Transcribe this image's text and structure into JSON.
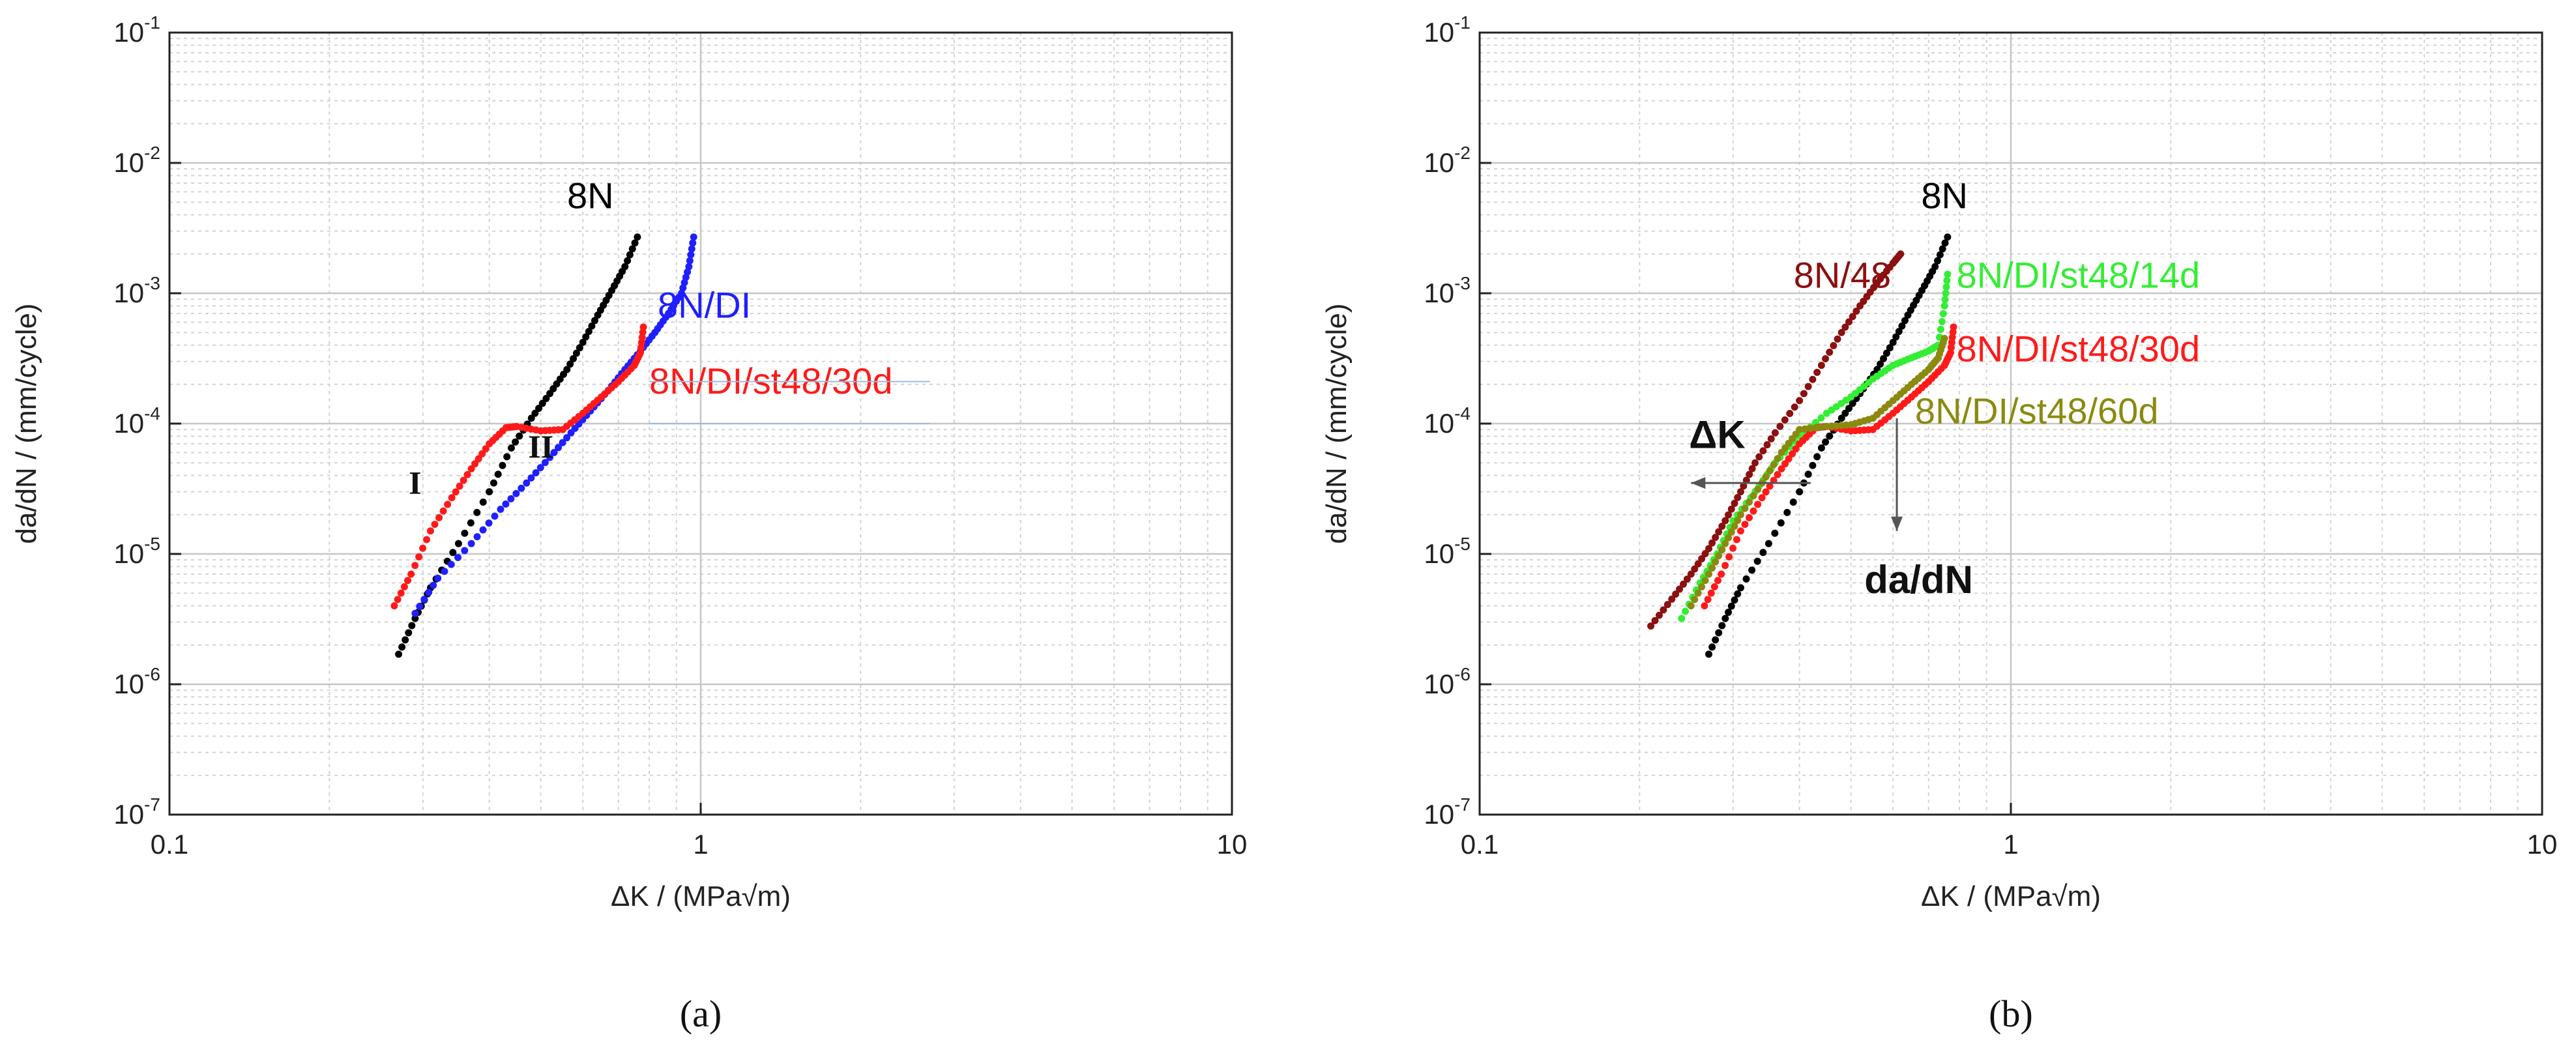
{
  "chart_data": [
    {
      "panel_label": "(a)",
      "type": "scatter",
      "xlabel": "ΔK / (MPa√m)",
      "ylabel": "da/dN / (mm/cycle)",
      "xscale": "log",
      "yscale": "log",
      "xlim": [
        0.1,
        10
      ],
      "ylim": [
        1e-07,
        0.1
      ],
      "x_tick_labels": [
        "0.1",
        "1",
        "10"
      ],
      "y_tick_labels": [
        "10-7",
        "10-6",
        "10-5",
        "10-4",
        "10-3",
        "10-2",
        "10-1"
      ],
      "grid": true,
      "series": [
        {
          "name": "8N",
          "color": "#000000",
          "x": [
            0.27,
            0.29,
            0.31,
            0.35,
            0.4,
            0.44,
            0.48,
            0.52,
            0.56,
            0.6,
            0.64,
            0.68,
            0.72,
            0.76
          ],
          "y": [
            1.7e-06,
            3.2e-06,
            5.5e-06,
            1.2e-05,
            3e-05,
            6.5e-05,
            0.00011,
            0.00017,
            0.00026,
            0.00042,
            0.00068,
            0.00105,
            0.0016,
            0.0027
          ]
        },
        {
          "name": "8N/DI",
          "color": "#1f1fff",
          "x": [
            0.29,
            0.32,
            0.37,
            0.42,
            0.47,
            0.52,
            0.57,
            0.62,
            0.67,
            0.72,
            0.77,
            0.82,
            0.87,
            0.92,
            0.95,
            0.97
          ],
          "y": [
            3.5e-06,
            6.5e-06,
            1.2e-05,
            2.2e-05,
            3.5e-05,
            5.5e-05,
            8.5e-05,
            0.000125,
            0.00018,
            0.00026,
            0.00036,
            0.0005,
            0.0007,
            0.001,
            0.0016,
            0.0027
          ]
        },
        {
          "name": "8N/DI/st48/30d",
          "color": "#ff1a1a",
          "x": [
            0.265,
            0.285,
            0.31,
            0.34,
            0.37,
            0.4,
            0.43,
            0.45,
            0.5,
            0.55,
            0.6,
            0.65,
            0.7,
            0.75,
            0.77,
            0.78
          ],
          "y": [
            4e-06,
            7e-06,
            1.5e-05,
            2.7e-05,
            4.5e-05,
            7e-05,
            9.3e-05,
            9.5e-05,
            8.8e-05,
            9e-05,
            0.00012,
            0.00016,
            0.00021,
            0.00028,
            0.00035,
            0.00055
          ]
        }
      ],
      "annotations": [
        "8N",
        "8N/DI",
        "8N/DI/st48/30d",
        "I",
        "II"
      ]
    },
    {
      "panel_label": "(b)",
      "type": "scatter",
      "xlabel": "ΔK / (MPa√m)",
      "ylabel": "da/dN / (mm/cycle)",
      "xscale": "log",
      "yscale": "log",
      "xlim": [
        0.1,
        10
      ],
      "ylim": [
        1e-07,
        0.1
      ],
      "x_tick_labels": [
        "0.1",
        "1",
        "10"
      ],
      "y_tick_labels": [
        "10-7",
        "10-6",
        "10-5",
        "10-4",
        "10-3",
        "10-2",
        "10-1"
      ],
      "grid": true,
      "series": [
        {
          "name": "8N",
          "color": "#000000",
          "x": [
            0.27,
            0.29,
            0.31,
            0.35,
            0.4,
            0.44,
            0.48,
            0.52,
            0.56,
            0.6,
            0.64,
            0.68,
            0.72,
            0.76
          ],
          "y": [
            1.7e-06,
            3.2e-06,
            5.5e-06,
            1.2e-05,
            3e-05,
            6.5e-05,
            0.00011,
            0.00017,
            0.00026,
            0.00042,
            0.00068,
            0.00105,
            0.0016,
            0.0027
          ]
        },
        {
          "name": "8N/48",
          "color": "#8b1010",
          "x": [
            0.21,
            0.23,
            0.25,
            0.27,
            0.29,
            0.31,
            0.33,
            0.36,
            0.4,
            0.44,
            0.48,
            0.52,
            0.56,
            0.6,
            0.62
          ],
          "y": [
            2.8e-06,
            4.5e-06,
            7e-06,
            1.1e-05,
            1.8e-05,
            3e-05,
            5e-05,
            8.5e-05,
            0.00015,
            0.00028,
            0.0005,
            0.0008,
            0.0012,
            0.0017,
            0.002
          ]
        },
        {
          "name": "8N/DI/st48/14d",
          "color": "#33ee33",
          "x": [
            0.24,
            0.26,
            0.28,
            0.3,
            0.33,
            0.36,
            0.4,
            0.45,
            0.5,
            0.55,
            0.6,
            0.65,
            0.7,
            0.73,
            0.75,
            0.76
          ],
          "y": [
            3.2e-06,
            6e-06,
            1e-05,
            1.8e-05,
            3e-05,
            5e-05,
            8e-05,
            0.00012,
            0.00016,
            0.00022,
            0.00028,
            0.00032,
            0.00036,
            0.0004,
            0.0008,
            0.0014
          ]
        },
        {
          "name": "8N/DI/st48/30d",
          "color": "#ff1a1a",
          "x": [
            0.265,
            0.285,
            0.31,
            0.34,
            0.37,
            0.4,
            0.43,
            0.45,
            0.5,
            0.55,
            0.6,
            0.65,
            0.7,
            0.75,
            0.77,
            0.78
          ],
          "y": [
            4e-06,
            7e-06,
            1.5e-05,
            2.7e-05,
            4.5e-05,
            7e-05,
            9.3e-05,
            9.5e-05,
            8.8e-05,
            9e-05,
            0.00012,
            0.00016,
            0.00021,
            0.00028,
            0.00035,
            0.00055
          ]
        },
        {
          "name": "8N/DI/st48/60d",
          "color": "#8a8a10",
          "x": [
            0.25,
            0.27,
            0.29,
            0.31,
            0.34,
            0.37,
            0.4,
            0.45,
            0.5,
            0.55,
            0.6,
            0.65,
            0.7,
            0.73,
            0.75
          ],
          "y": [
            4e-06,
            7e-06,
            1.2e-05,
            2e-05,
            3.5e-05,
            6e-05,
            9e-05,
            9.5e-05,
            9.8e-05,
            0.00011,
            0.00015,
            0.0002,
            0.00026,
            0.00032,
            0.00045
          ]
        }
      ],
      "annotations": [
        "8N",
        "8N/48",
        "8N/DI/st48/14d",
        "8N/DI/st48/30d",
        "8N/DI/st48/60d",
        "ΔK",
        "da/dN"
      ]
    }
  ]
}
